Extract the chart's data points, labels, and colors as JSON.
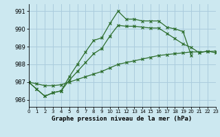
{
  "title": "Graphe pression niveau de la mer (hPa)",
  "background_color": "#cce8f0",
  "grid_color": "#aaccdd",
  "line_color": "#2d6e2d",
  "line_a": [
    987.0,
    986.6,
    986.2,
    986.4,
    986.5,
    987.3,
    988.0,
    988.7,
    989.35,
    989.5,
    990.3,
    991.0,
    990.55,
    990.55,
    990.45,
    990.45,
    990.45,
    990.1,
    990.0,
    989.85,
    988.5,
    null,
    null,
    null
  ],
  "line_b": [
    987.0,
    986.6,
    986.2,
    986.4,
    986.5,
    987.1,
    987.6,
    988.1,
    988.6,
    988.9,
    989.6,
    990.2,
    990.15,
    990.15,
    990.1,
    990.05,
    990.05,
    989.75,
    989.45,
    989.15,
    988.95,
    988.65,
    988.75,
    988.65
  ],
  "line_c": [
    987.0,
    986.9,
    986.8,
    986.8,
    986.85,
    987.0,
    987.15,
    987.3,
    987.45,
    987.6,
    987.8,
    988.0,
    988.1,
    988.2,
    988.3,
    988.4,
    988.5,
    988.55,
    988.6,
    988.65,
    988.7,
    988.7,
    988.72,
    988.75
  ],
  "xlim": [
    0,
    23
  ],
  "ylim": [
    985.6,
    991.4
  ],
  "yticks": [
    986,
    987,
    988,
    989,
    990,
    991
  ],
  "xticks": [
    0,
    1,
    2,
    3,
    4,
    5,
    6,
    7,
    8,
    9,
    10,
    11,
    12,
    13,
    14,
    15,
    16,
    17,
    18,
    19,
    20,
    21,
    22,
    23
  ]
}
